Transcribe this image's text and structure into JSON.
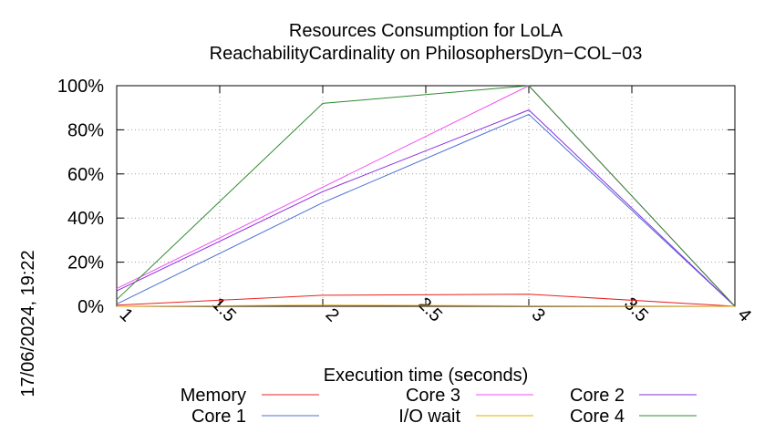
{
  "chart_data": {
    "type": "line",
    "title": "Resources Consumption for LoLA",
    "subtitle": "ReachabilityCardinality on PhilosophersDyn−COL−03",
    "xlabel": "Execution time (seconds)",
    "ylabel": "",
    "xlim": [
      1,
      4
    ],
    "ylim": [
      0,
      100
    ],
    "x_ticks": [
      1,
      1.5,
      2,
      2.5,
      3,
      3.5,
      4
    ],
    "x_tick_labels": [
      "1",
      "1.5",
      "2",
      "2.5",
      "3",
      "3.5",
      "4"
    ],
    "y_ticks": [
      0,
      20,
      40,
      60,
      80,
      100
    ],
    "y_tick_labels": [
      "0%",
      "20%",
      "40%",
      "60%",
      "80%",
      "100%"
    ],
    "grid": true,
    "legend_position": "bottom",
    "side_label": "17/06/2024, 19:22",
    "series": [
      {
        "name": "Memory",
        "color": "#e8201f",
        "x": [
          1,
          2,
          3,
          4
        ],
        "y": [
          0.5,
          5,
          5.5,
          0
        ]
      },
      {
        "name": "Core 1",
        "color": "#4a6fd6",
        "x": [
          1,
          2,
          3,
          4
        ],
        "y": [
          1,
          47,
          87,
          0
        ]
      },
      {
        "name": "Core 3",
        "color": "#f050f0",
        "x": [
          1,
          2,
          3,
          4
        ],
        "y": [
          8,
          54,
          100,
          0
        ]
      },
      {
        "name": "I/O wait",
        "color": "#f0a800",
        "x": [
          1,
          2,
          3,
          4
        ],
        "y": [
          0,
          0.5,
          0.2,
          0
        ]
      },
      {
        "name": "Core 2",
        "color": "#8a2be2",
        "x": [
          1,
          2,
          3,
          4
        ],
        "y": [
          7,
          52,
          89,
          0
        ]
      },
      {
        "name": "Core 4",
        "color": "#2e8b2e",
        "x": [
          1,
          2,
          3,
          4
        ],
        "y": [
          3,
          92,
          100,
          0
        ]
      }
    ]
  }
}
